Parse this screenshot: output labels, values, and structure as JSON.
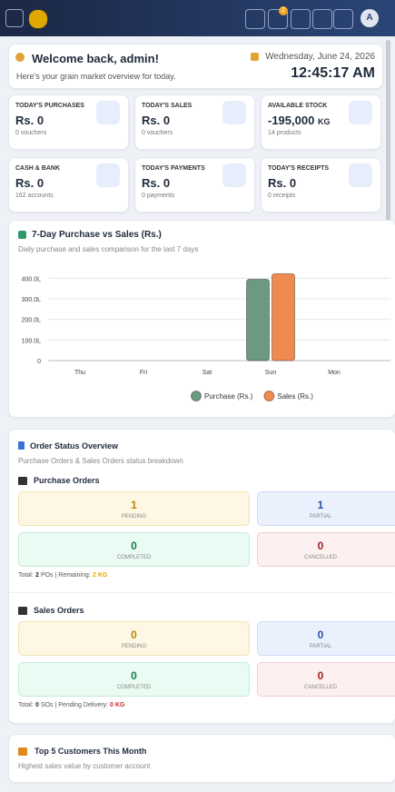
{
  "header": {
    "cart_badge": "2",
    "avatar": "A"
  },
  "welcome": {
    "title": "Welcome back, admin!",
    "subtitle": "Here's your grain market overview for today.",
    "date": "Wednesday, June 24, 2026",
    "time": "12:45:17 AM"
  },
  "stats": [
    {
      "label": "TODAY'S PURCHASES",
      "value": "Rs. 0",
      "sub": "0 vouchers"
    },
    {
      "label": "TODAY'S SALES",
      "value": "Rs. 0",
      "sub": "0 vouchers"
    },
    {
      "label": "AVAILABLE STOCK",
      "value": "-195,000",
      "unit": "KG",
      "sub": "14 products"
    },
    {
      "label": "CASH & BANK",
      "value": "Rs. 0",
      "sub": "162 accounts"
    },
    {
      "label": "TODAY'S PAYMENTS",
      "value": "Rs. 0",
      "sub": "0 payments"
    },
    {
      "label": "TODAY'S RECEIPTS",
      "value": "Rs. 0",
      "sub": "0 receipts"
    }
  ],
  "chart_data": {
    "type": "bar",
    "title": "7-Day Purchase vs Sales (Rs.)",
    "subtitle": "Daily purchase and sales comparison for the last 7 days",
    "categories": [
      "Thu",
      "Fri",
      "Sat",
      "Sun",
      "Mon"
    ],
    "series": [
      {
        "name": "Purchase (Rs.)",
        "color": "#6b9a80",
        "values": [
          0,
          0,
          0,
          395,
          0
        ]
      },
      {
        "name": "Sales (Rs.)",
        "color": "#f08a4f",
        "values": [
          0,
          0,
          0,
          422,
          0
        ]
      }
    ],
    "ylim": [
      0,
      450
    ],
    "yticks": [
      0,
      {
        "value": 100,
        "label": "100.0L"
      },
      {
        "value": 200,
        "label": "200.0L"
      },
      {
        "value": 300,
        "label": "300.0L"
      },
      {
        "value": 400,
        "label": "400.0L"
      }
    ],
    "grid": true,
    "legend": "bottom"
  },
  "order_status": {
    "title": "Order Status Overview",
    "subtitle": "Purchase Orders & Sales Orders status breakdown",
    "groups": [
      {
        "title": "Purchase Orders",
        "cells": [
          {
            "value": "1",
            "label": "PENDING"
          },
          {
            "value": "1",
            "label": "PARTIAL"
          },
          {
            "value": "0",
            "label": "COMPLETED"
          },
          {
            "value": "0",
            "label": "CANCELLED"
          }
        ],
        "footer": [
          "Total: ",
          "2",
          " POs | Remaining: ",
          "2 KG"
        ]
      },
      {
        "title": "Sales Orders",
        "cells": [
          {
            "value": "0",
            "label": "PENDING"
          },
          {
            "value": "0",
            "label": "PARTIAL"
          },
          {
            "value": "0",
            "label": "COMPLETED"
          },
          {
            "value": "0",
            "label": "CANCELLED"
          }
        ],
        "footer": [
          "Total: ",
          "0",
          " SOs | Pending Delivery: ",
          "0 KG"
        ]
      }
    ]
  },
  "top_customers": {
    "title": "Top 5 Customers This Month",
    "subtitle": "Highest sales value by customer account"
  }
}
